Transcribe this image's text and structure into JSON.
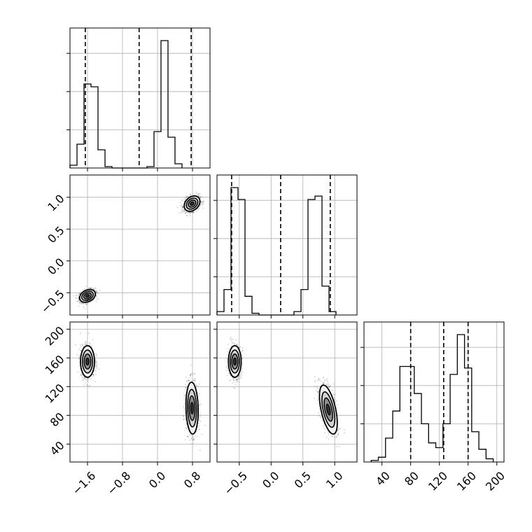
{
  "chart_data": {
    "type": "corner",
    "title": "",
    "colors": {
      "ink": "#000000",
      "grid": "#b0b0b0",
      "density": "#333333"
    },
    "parameters": [
      {
        "label": "",
        "range": [
          -2.0,
          1.2
        ],
        "ticks": [
          -1.6,
          -0.8,
          0.0,
          0.8
        ],
        "tick_labels": [
          "−1.6",
          "−0.8",
          "0.0",
          "0.8"
        ]
      },
      {
        "label": "",
        "range": [
          -0.85,
          1.35
        ],
        "ticks": [
          -0.5,
          0.0,
          0.5,
          1.0
        ],
        "tick_labels": [
          "−0.5",
          "0.0",
          "0.5",
          "1.0"
        ]
      },
      {
        "label": "",
        "range": [
          15,
          210
        ],
        "ticks": [
          40,
          80,
          120,
          160,
          200
        ],
        "tick_labels": [
          "40",
          "80",
          "120",
          "160",
          "200"
        ]
      }
    ],
    "histograms": [
      {
        "param": 0,
        "bin_start": -2.0,
        "bin_width": 0.16,
        "counts": [
          0.02,
          0.17,
          0.6,
          0.58,
          0.13,
          0.01,
          0,
          0,
          0,
          0,
          0,
          0.01,
          0.26,
          0.91,
          0.22,
          0.03
        ],
        "quantiles": [
          -1.65,
          -0.42,
          0.77
        ]
      },
      {
        "param": 1,
        "bin_start": -0.85,
        "bin_width": 0.11,
        "counts": [
          0.02,
          0.15,
          0.75,
          0.68,
          0.11,
          0.01,
          0,
          0,
          0,
          0,
          0,
          0.02,
          0.15,
          0.68,
          0.7,
          0.17,
          0.02
        ],
        "quantiles": [
          -0.62,
          0.15,
          0.93
        ]
      },
      {
        "param": 2,
        "bin_start": 25,
        "bin_width": 10,
        "counts": [
          0.01,
          0.03,
          0.15,
          0.32,
          0.6,
          0.6,
          0.43,
          0.24,
          0.12,
          0.09,
          0.24,
          0.55,
          0.8,
          0.59,
          0.19,
          0.08,
          0.02
        ],
        "quantiles": [
          80,
          126,
          160
        ]
      }
    ],
    "density_panels": [
      {
        "x_param": 0,
        "y_param": 1,
        "clusters": [
          {
            "mean": [
              -1.6,
              -0.55
            ],
            "sd": [
              0.09,
              0.05
            ],
            "rho": 0.3
          },
          {
            "mean": [
              0.79,
              0.9
            ],
            "sd": [
              0.09,
              0.06
            ],
            "rho": 0.3
          }
        ]
      },
      {
        "x_param": 0,
        "y_param": 2,
        "clusters": [
          {
            "mean": [
              -1.6,
              155
            ],
            "sd": [
              0.08,
              11
            ],
            "rho": 0.0
          },
          {
            "mean": [
              0.79,
              90
            ],
            "sd": [
              0.07,
              18
            ],
            "rho": -0.1
          }
        ]
      },
      {
        "x_param": 1,
        "y_param": 2,
        "clusters": [
          {
            "mean": [
              -0.57,
              155
            ],
            "sd": [
              0.05,
              11
            ],
            "rho": 0.0
          },
          {
            "mean": [
              0.9,
              88
            ],
            "sd": [
              0.07,
              17
            ],
            "rho": -0.55
          }
        ]
      }
    ]
  }
}
